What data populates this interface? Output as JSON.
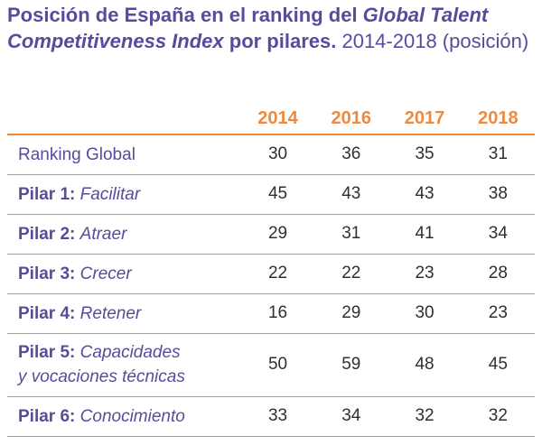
{
  "title": {
    "bold_part1": "Posición de España en el ranking del ",
    "bold_italic": "Global Talent Competitiveness Index",
    "bold_part2": " por pilares.",
    "normal": " 2014-2018 (posición)"
  },
  "table": {
    "headers": [
      "2014",
      "2016",
      "2017",
      "2018"
    ],
    "rows": [
      {
        "prefix": "",
        "label": "Ranking Global",
        "label2": "",
        "values": [
          "30",
          "36",
          "35",
          "31"
        ]
      },
      {
        "prefix": "Pilar 1:",
        "label": "Facilitar",
        "label2": "",
        "values": [
          "45",
          "43",
          "43",
          "38"
        ]
      },
      {
        "prefix": "Pilar 2:",
        "label": "Atraer",
        "label2": "",
        "values": [
          "29",
          "31",
          "41",
          "34"
        ]
      },
      {
        "prefix": "Pilar 3:",
        "label": "Crecer",
        "label2": "",
        "values": [
          "22",
          "22",
          "23",
          "28"
        ]
      },
      {
        "prefix": "Pilar 4:",
        "label": "Retener",
        "label2": "",
        "values": [
          "16",
          "29",
          "30",
          "23"
        ]
      },
      {
        "prefix": "Pilar 5:",
        "label": "Capacidades",
        "label2": "y vocaciones técnicas",
        "values": [
          "50",
          "59",
          "48",
          "45"
        ]
      },
      {
        "prefix": "Pilar 6:",
        "label": "Conocimiento",
        "label2": "",
        "values": [
          "33",
          "34",
          "32",
          "32"
        ]
      }
    ]
  }
}
